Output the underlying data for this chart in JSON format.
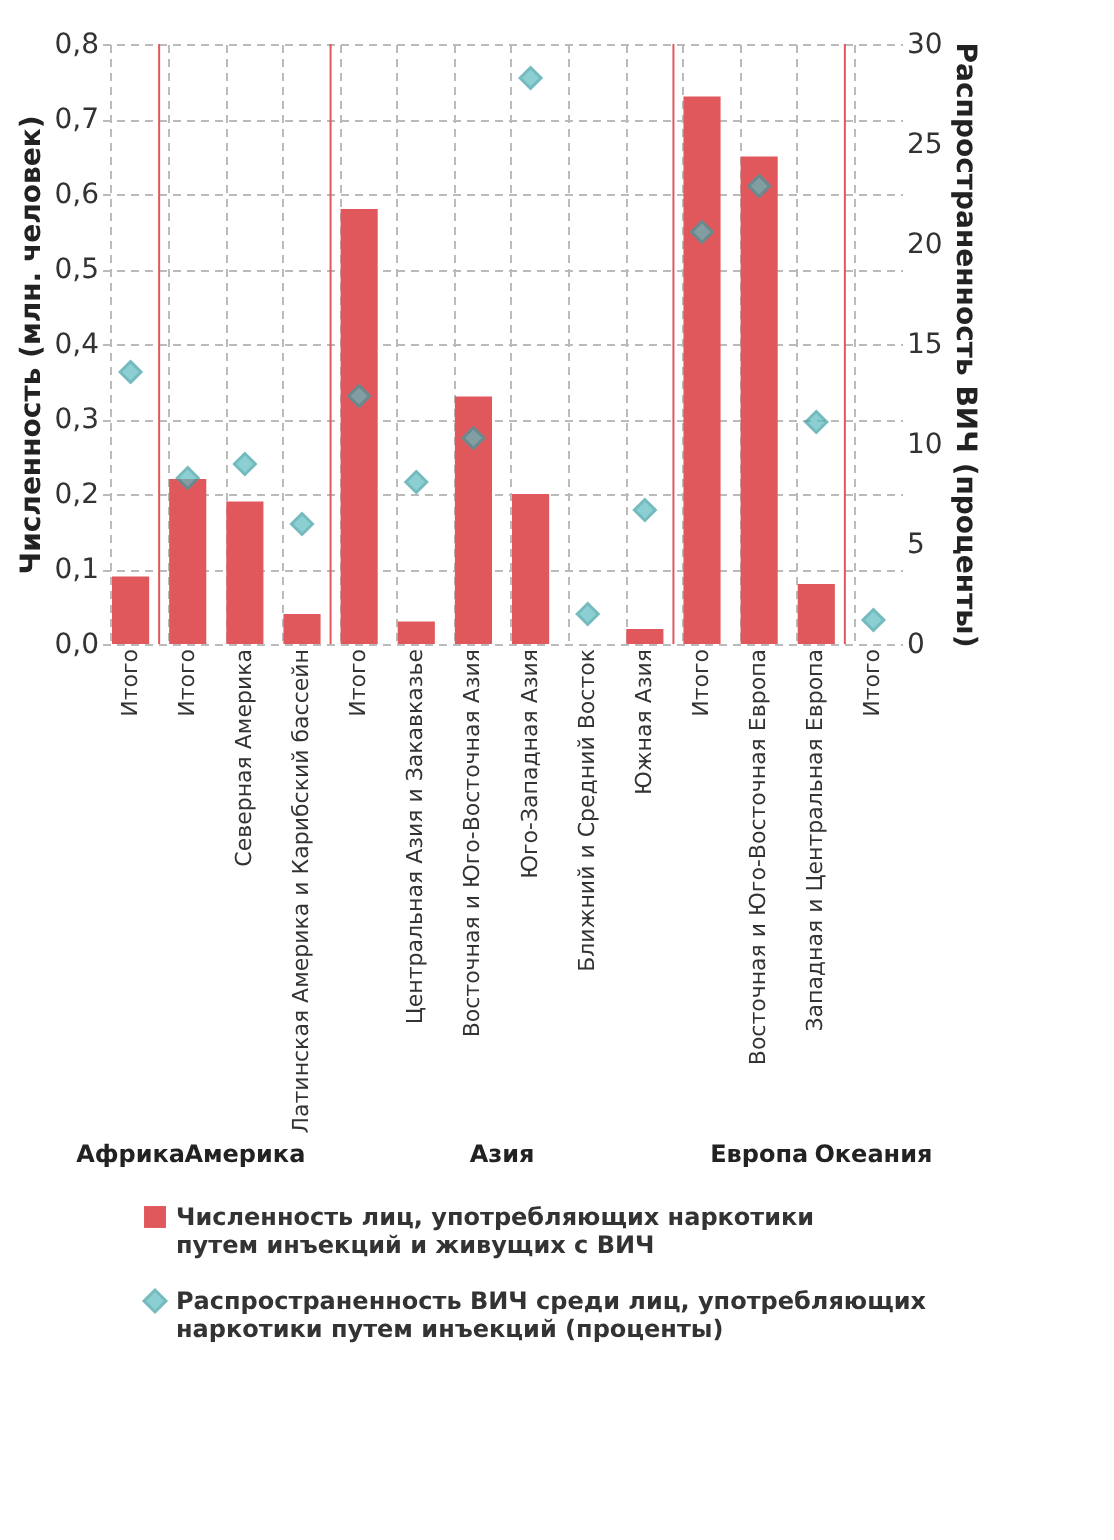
{
  "chart_data": {
    "type": "bar",
    "ylabel": "Численность (млн. человек)",
    "y2label": "Распространенность ВИЧ (проценты)",
    "categories": [
      "Итого",
      "Итого",
      "Северная Америка",
      "Латинская Америка и Карибский бассейн",
      "Итого",
      "Центральная Азия и Закавказье",
      "Восточная и Юго-Восточная Азия",
      "Юго-Западная Азия",
      "Ближний и Средний Восток",
      "Южная Азия",
      "Итого",
      "Восточная и Юго-Восточная Европа",
      "Западная и Центральная Европа",
      "Итого"
    ],
    "series": [
      {
        "name": "Численность лиц, употребляющих наркотики путем инъекций и живущих с ВИЧ",
        "color": "#e0585c",
        "values": [
          0.09,
          0.22,
          0.19,
          0.04,
          0.58,
          0.03,
          0.33,
          0.2,
          null,
          0.02,
          0.73,
          0.65,
          0.08,
          null
        ]
      },
      {
        "name": "Распространенность ВИЧ среди лиц, употребляющих наркотики путем инъекций (проценты)",
        "type": "scatter",
        "axis": "y2",
        "marker": "diamond",
        "color": "#5bbcc0",
        "values": [
          13.6,
          8.3,
          9.0,
          6.0,
          12.4,
          8.1,
          10.3,
          28.3,
          1.5,
          6.7,
          20.6,
          22.9,
          11.1,
          1.2
        ]
      }
    ],
    "ylim": [
      0,
      0.8
    ],
    "yticks": [
      {
        "value": 0,
        "label": "0,0"
      },
      {
        "value": 0.1,
        "label": "0,1"
      },
      {
        "value": 0.2,
        "label": "0,2"
      },
      {
        "value": 0.3,
        "label": "0,3"
      },
      {
        "value": 0.4,
        "label": "0,4"
      },
      {
        "value": 0.5,
        "label": "0,5"
      },
      {
        "value": 0.6,
        "label": "0,6"
      },
      {
        "value": 0.7,
        "label": "0,7"
      },
      {
        "value": 0.8,
        "label": "0,8"
      }
    ],
    "y2lim": [
      0,
      30
    ],
    "y2ticks": [
      0,
      5,
      10,
      15,
      20,
      25,
      30
    ],
    "annotations": [
      "Африка",
      "Америка",
      "Азия",
      "Европа",
      "Океания"
    ],
    "grid": true,
    "legend": "bottom"
  }
}
